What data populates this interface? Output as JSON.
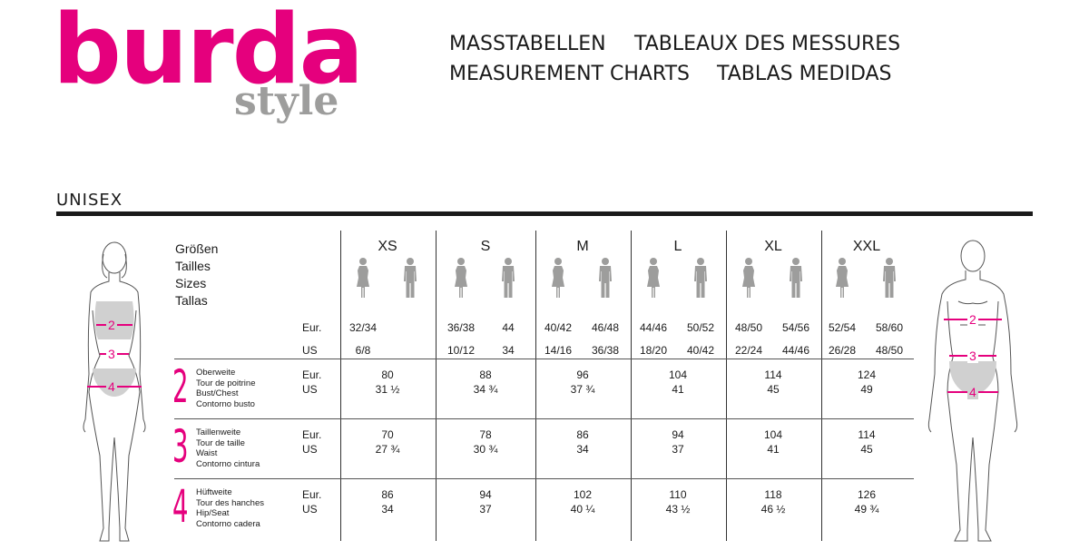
{
  "brand": {
    "logo_main": "burda",
    "logo_sub": "style",
    "colors": {
      "accent": "#e5007d",
      "grey": "#9d9d9c",
      "text": "#1a1a1a"
    }
  },
  "header": {
    "titles": [
      "MASSTABELLEN",
      "TABLEAUX DES MESSURES",
      "MEASUREMENT CHARTS",
      "TABLAS MEDIDAS"
    ]
  },
  "section": {
    "title": "UNISEX"
  },
  "sizes_label": [
    "Größen",
    "Tailles",
    "Sizes",
    "Tallas"
  ],
  "unit_labels": {
    "eur": "Eur.",
    "us": "US"
  },
  "figure_marks": [
    "2",
    "3",
    "4"
  ],
  "icons": [
    "woman-figure-icon",
    "man-figure-icon"
  ],
  "sizes": [
    {
      "name": "XS",
      "eur_women": "32/34",
      "eur_men": "",
      "us_women": "6/8",
      "us_men": ""
    },
    {
      "name": "S",
      "eur_women": "36/38",
      "eur_men": "44",
      "us_women": "10/12",
      "us_men": "34"
    },
    {
      "name": "M",
      "eur_women": "40/42",
      "eur_men": "46/48",
      "us_women": "14/16",
      "us_men": "36/38"
    },
    {
      "name": "L",
      "eur_women": "44/46",
      "eur_men": "50/52",
      "us_women": "18/20",
      "us_men": "40/42"
    },
    {
      "name": "XL",
      "eur_women": "48/50",
      "eur_men": "54/56",
      "us_women": "22/24",
      "us_men": "44/46"
    },
    {
      "name": "XXL",
      "eur_women": "52/54",
      "eur_men": "58/60",
      "us_women": "26/28",
      "us_men": "48/50"
    }
  ],
  "measurements": [
    {
      "number": "2",
      "labels": [
        "Oberweite",
        "Tour de poitrine",
        "Bust/Chest",
        "Contorno busto"
      ],
      "eur": [
        "80",
        "88",
        "96",
        "104",
        "114",
        "124"
      ],
      "us": [
        "31 ½",
        "34 ¾",
        "37 ¾",
        "41",
        "45",
        "49"
      ]
    },
    {
      "number": "3",
      "labels": [
        "Taillenweite",
        "Tour de taille",
        "Waist",
        "Contorno cintura"
      ],
      "eur": [
        "70",
        "78",
        "86",
        "94",
        "104",
        "114"
      ],
      "us": [
        "27 ¾",
        "30 ¾",
        "34",
        "37",
        "41",
        "45"
      ]
    },
    {
      "number": "4",
      "labels": [
        "Hüftweite",
        "Tour des hanches",
        "Hip/Seat",
        "Contorno cadera"
      ],
      "eur": [
        "86",
        "94",
        "102",
        "110",
        "118",
        "126"
      ],
      "us": [
        "34",
        "37",
        "40 ¼",
        "43 ½",
        "46 ½",
        "49 ¾"
      ]
    }
  ]
}
